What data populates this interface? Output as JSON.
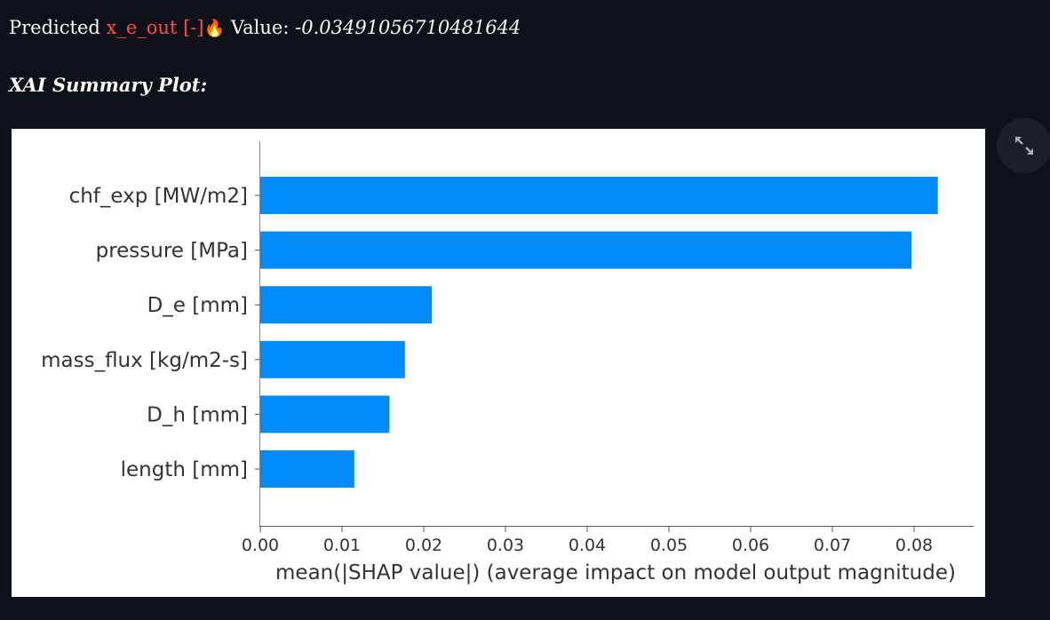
{
  "prediction": {
    "prefix": "Predicted",
    "variable": "x_e_out [-]",
    "emoji": "🔥",
    "value_label": "Value:",
    "value": "-0.03491056710481644"
  },
  "section_title": "XAI Summary Plot:",
  "expand_icon": "expand-arrows-icon",
  "colors": {
    "background": "#0e1117",
    "accent": "#ff4b4b",
    "bar": "#008bfb"
  },
  "chart_data": {
    "type": "bar",
    "orientation": "horizontal",
    "categories": [
      "chf_exp [MW/m2]",
      "pressure [MPa]",
      "D_e [mm]",
      "mass_flux [kg/m2-s]",
      "D_h [mm]",
      "length [mm]"
    ],
    "values": [
      0.0829,
      0.0797,
      0.021,
      0.0177,
      0.0158,
      0.0115
    ],
    "xlabel": "mean(|SHAP value|) (average impact on model output magnitude)",
    "xlim": [
      0,
      0.087
    ],
    "xticks": [
      "0.00",
      "0.01",
      "0.02",
      "0.03",
      "0.04",
      "0.05",
      "0.06",
      "0.07",
      "0.08"
    ],
    "grid": false
  }
}
